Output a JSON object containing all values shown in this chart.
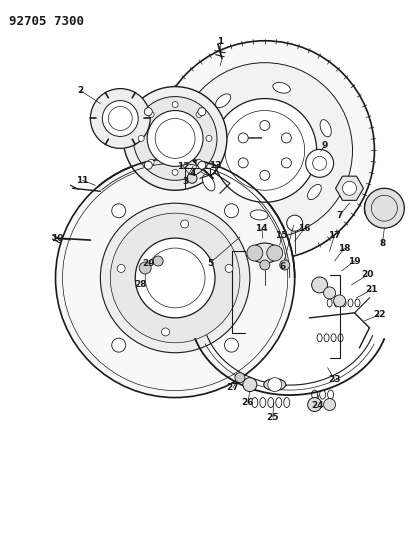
{
  "title_code": "92705 7300",
  "bg_color": "#ffffff",
  "line_color": "#1a1a1a",
  "title_fontsize": 9,
  "label_fontsize": 6.5,
  "fig_width": 4.13,
  "fig_height": 5.33,
  "dpi": 100
}
